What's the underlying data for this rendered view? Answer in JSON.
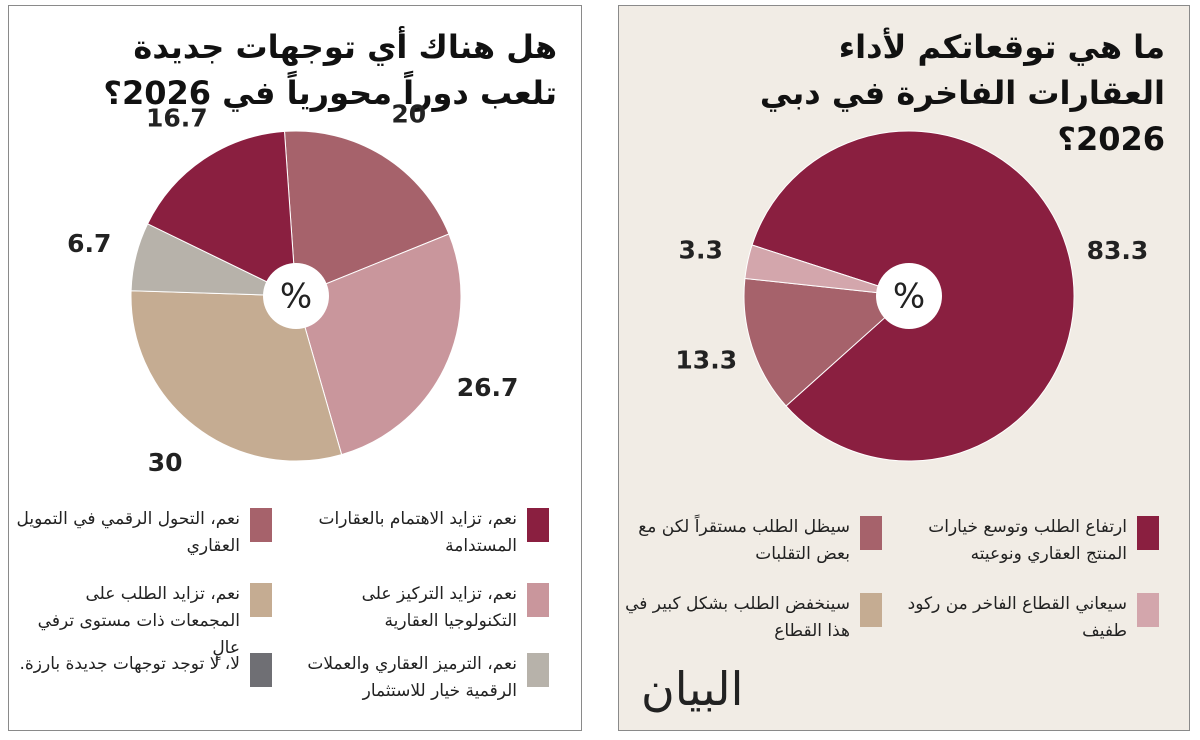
{
  "chart_data": [
    {
      "type": "pie",
      "title": "هل هناك أي توجهات جديدة تلعب دوراً محورياً في 2026؟",
      "center_label": "%",
      "categories": [
        "نعم، التحول الرقمي في التمويل العقاري",
        "نعم، تزايد التركيز على التكنولوجيا العقارية",
        "نعم، تزايد الطلب على المجمعات ذات مستوى ترفي عالٍ",
        "نعم، الترميز العقاري والعملات الرقمية خيار للاستثمار",
        "نعم، تزايد الاهتمام بالعقارات المستدامة",
        "لا، لا توجد توجهات جديدة بارزة."
      ],
      "values": [
        20,
        26.7,
        30,
        6.7,
        16.7,
        null
      ],
      "colors": [
        "#a6626b",
        "#c9969c",
        "#c5ac92",
        "#b7b2aa",
        "#8a1f40",
        "#6f6f74"
      ]
    },
    {
      "type": "pie",
      "title": "ما هي توقعاتكم لأداء العقارات الفاخرة في دبي 2026؟",
      "center_label": "%",
      "categories": [
        "ارتفاع الطلب وتوسع خيارات المنتج العقاري ونوعيته",
        "سيظل الطلب مستقراً لكن مع بعض التقلبات",
        "سيعاني القطاع الفاخر من ركود طفيف",
        "سينخفض الطلب بشكل كبير في هذا القطاع"
      ],
      "values": [
        83.3,
        13.3,
        3.3,
        null
      ],
      "colors": [
        "#8a1f40",
        "#a6626b",
        "#d3a6ac",
        "#c5ac92"
      ]
    }
  ],
  "logo": "البيان"
}
